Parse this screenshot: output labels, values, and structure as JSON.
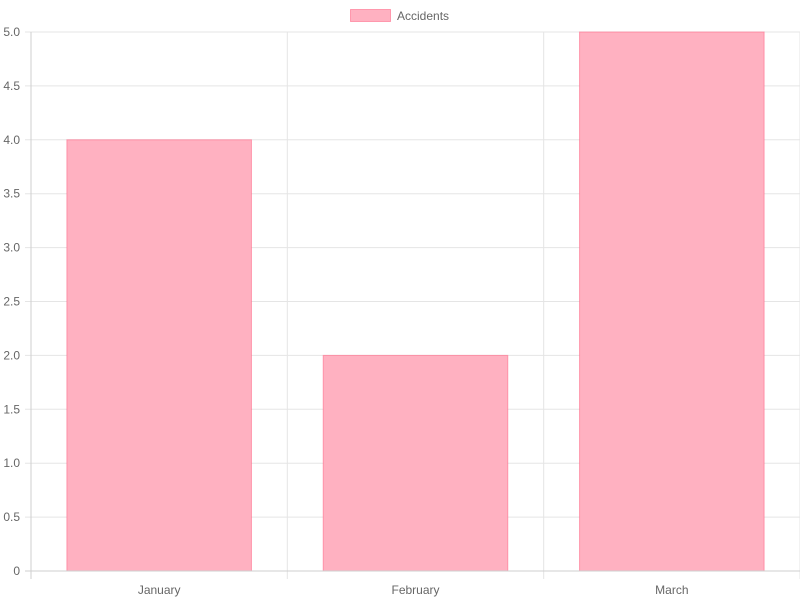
{
  "chart_data": {
    "type": "bar",
    "categories": [
      "January",
      "February",
      "March"
    ],
    "series": [
      {
        "name": "Accidents",
        "values": [
          4,
          2,
          5
        ],
        "fill": "#ffb1c1",
        "stroke": "#ff6384"
      }
    ],
    "ylim": [
      0,
      5
    ],
    "yticks": [
      "0",
      "0.5",
      "1.0",
      "1.5",
      "2.0",
      "2.5",
      "3.0",
      "3.5",
      "4.0",
      "4.5",
      "5.0"
    ],
    "grid": true,
    "grid_color": "#e5e5e5",
    "legend_position": "top-center",
    "title": "",
    "xlabel": "",
    "ylabel": ""
  }
}
